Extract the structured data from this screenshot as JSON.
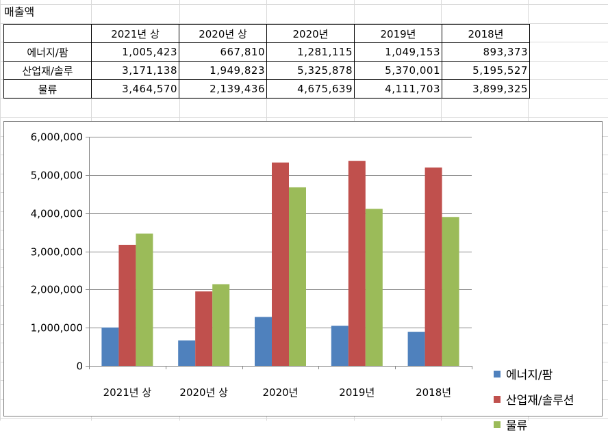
{
  "sheet": {
    "title": "매출액"
  },
  "table": {
    "header": [
      "",
      "2021년 상",
      "2020년 상",
      "2020년",
      "2019년",
      "2018년"
    ],
    "rows": [
      {
        "label": "에너지/팜",
        "values": [
          "1,005,423",
          "667,810",
          "1,281,115",
          "1,049,153",
          "893,373"
        ]
      },
      {
        "label": "산업재/솔루",
        "values": [
          "3,171,138",
          "1,949,823",
          "5,325,878",
          "5,370,001",
          "5,195,527"
        ]
      },
      {
        "label": "물류",
        "values": [
          "3,464,570",
          "2,139,436",
          "4,675,639",
          "4,111,703",
          "3,899,325"
        ]
      }
    ]
  },
  "chart_data": {
    "type": "bar",
    "categories": [
      "2021년 상",
      "2020년 상",
      "2020년",
      "2019년",
      "2018년"
    ],
    "series": [
      {
        "name": "에너지/팜",
        "color": "#4F81BD",
        "values": [
          1005423,
          667810,
          1281115,
          1049153,
          893373
        ]
      },
      {
        "name": "산업재/솔루션",
        "color": "#C0504D",
        "values": [
          3171138,
          1949823,
          5325878,
          5370001,
          5195527
        ]
      },
      {
        "name": "물류",
        "color": "#9BBB59",
        "values": [
          3464570,
          2139436,
          4675639,
          4111703,
          3899325
        ]
      }
    ],
    "ylim": [
      0,
      6000000
    ],
    "yticks": [
      "0",
      "1,000,000",
      "2,000,000",
      "3,000,000",
      "4,000,000",
      "5,000,000",
      "6,000,000"
    ],
    "grid": true,
    "legend": "right"
  }
}
